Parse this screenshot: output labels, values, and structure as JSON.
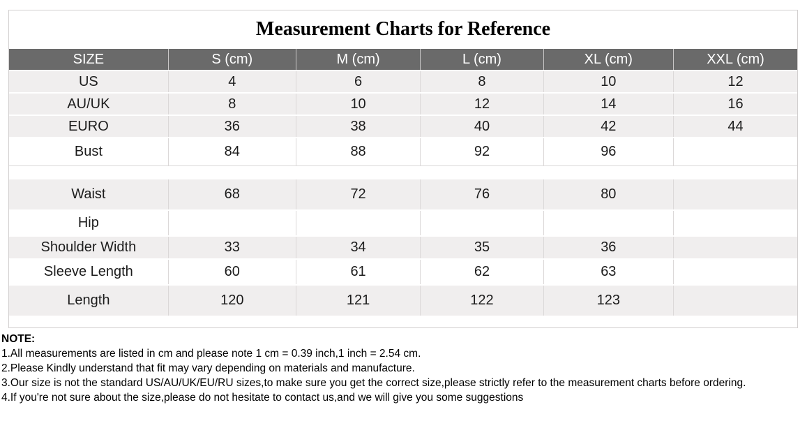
{
  "title": "Measurement Charts for Reference",
  "table": {
    "columns": [
      "SIZE",
      "S (cm)",
      "M (cm)",
      "L (cm)",
      "XL (cm)",
      "XXL (cm)"
    ],
    "rows": [
      {
        "label": "US",
        "values": [
          "4",
          "6",
          "8",
          "10",
          "12"
        ]
      },
      {
        "label": "AU/UK",
        "values": [
          "8",
          "10",
          "12",
          "14",
          "16"
        ]
      },
      {
        "label": "EURO",
        "values": [
          "36",
          "38",
          "40",
          "42",
          "44"
        ]
      },
      {
        "label": "Bust",
        "values": [
          "84",
          "88",
          "92",
          "96",
          ""
        ]
      },
      {
        "label": "Waist",
        "values": [
          "68",
          "72",
          "76",
          "80",
          ""
        ]
      },
      {
        "label": "Hip",
        "values": [
          "",
          "",
          "",
          "",
          ""
        ]
      },
      {
        "label": "Shoulder Width",
        "values": [
          "33",
          "34",
          "35",
          "36",
          ""
        ]
      },
      {
        "label": "Sleeve Length",
        "values": [
          "60",
          "61",
          "62",
          "63",
          ""
        ]
      },
      {
        "label": "Length",
        "values": [
          "120",
          "121",
          "122",
          "123",
          ""
        ]
      }
    ]
  },
  "note": {
    "heading": "NOTE:",
    "items": [
      "1.All measurements are listed in cm and please note 1 cm = 0.39 inch,1 inch = 2.54 cm.",
      "2.Please Kindly understand that fit may vary depending on materials and manufacture.",
      "3.Our size is not the standard US/AU/UK/EU/RU sizes,to make sure you get the correct size,please strictly refer to the measurement charts before ordering.",
      "4.If you're not sure about the size,please do not hesitate to contact us,and we will give you some suggestions"
    ]
  },
  "colors": {
    "header_bg": "#6a6a6a",
    "header_text": "#ffffff",
    "row_gray": "#f0eeee",
    "row_white": "#ffffff",
    "border": "#dbd8d8",
    "text": "#1c1c1c"
  }
}
